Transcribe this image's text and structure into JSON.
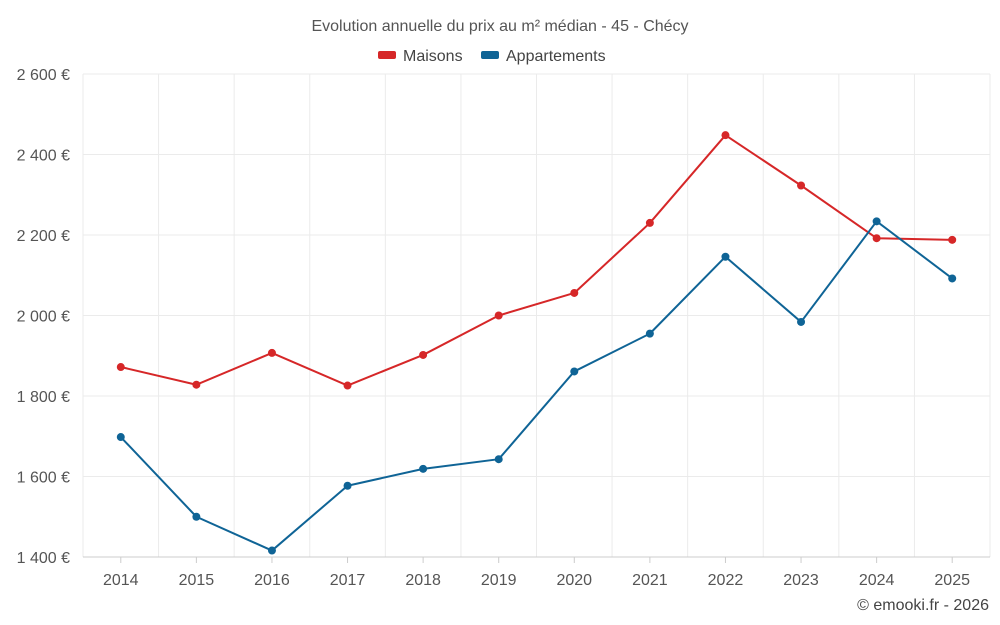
{
  "chart_data": {
    "type": "line",
    "title": "Evolution annuelle du prix au m² médian - 45 - Chécy",
    "categories": [
      "2014",
      "2015",
      "2016",
      "2017",
      "2018",
      "2019",
      "2020",
      "2021",
      "2022",
      "2023",
      "2024",
      "2025"
    ],
    "series": [
      {
        "name": "Maisons",
        "color": "#d62728",
        "values": [
          1872,
          1828,
          1907,
          1826,
          1902,
          2000,
          2056,
          2230,
          2448,
          2323,
          2192,
          2188
        ]
      },
      {
        "name": "Appartements",
        "color": "#0f6496",
        "values": [
          1698,
          1500,
          1416,
          1577,
          1619,
          1643,
          1861,
          1955,
          2146,
          1984,
          2234,
          2092
        ]
      }
    ],
    "ylim": [
      1400,
      2600
    ],
    "yticks": [
      1400,
      1600,
      1800,
      2000,
      2200,
      2400,
      2600
    ],
    "ytick_labels": [
      "1 400 €",
      "1 600 €",
      "1 800 €",
      "2 000 €",
      "2 200 €",
      "2 400 €",
      "2 600 €"
    ],
    "xlabel": "",
    "ylabel": "",
    "grid": true,
    "legend_position": "top-center",
    "credit": "© emooki.fr - 2026"
  }
}
